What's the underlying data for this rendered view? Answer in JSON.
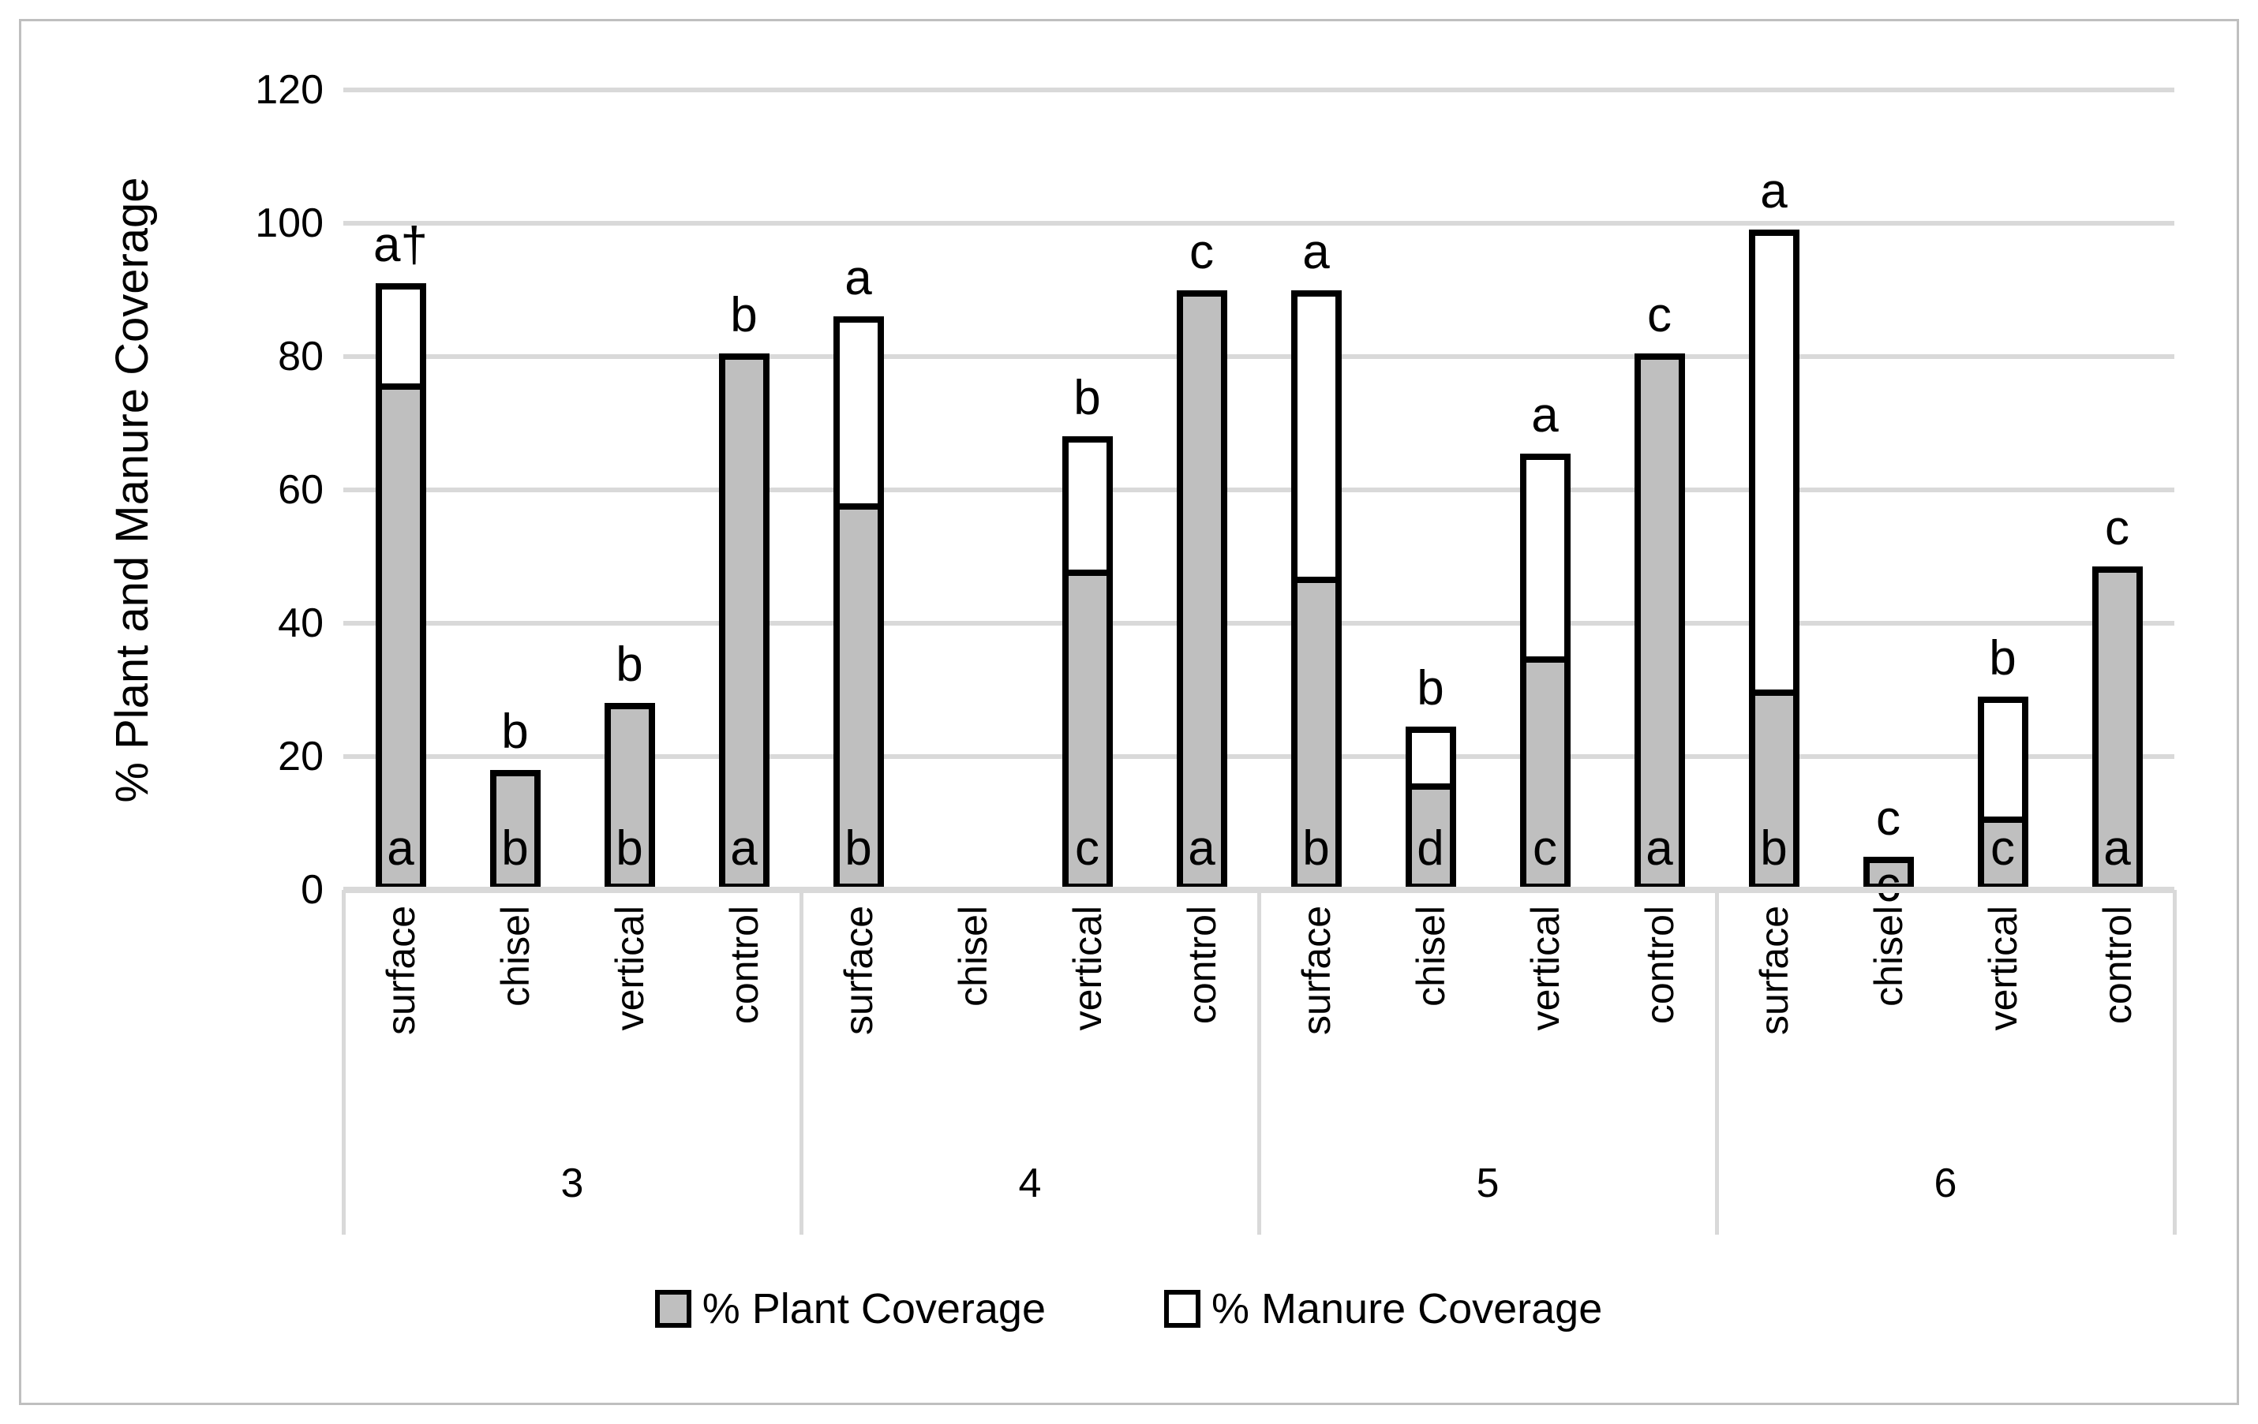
{
  "chart_data": {
    "type": "bar",
    "stacked": true,
    "title": "",
    "ylabel": "% Plant and Manure Coverage",
    "ylim": [
      0,
      120
    ],
    "yticks": [
      0,
      20,
      40,
      60,
      80,
      100,
      120
    ],
    "grid": "horizontal-major",
    "legend_position": "bottom",
    "legend": [
      {
        "name": "% Plant Coverage",
        "fill": "#bfbfbf"
      },
      {
        "name": "% Manure Coverage",
        "fill": "#ffffff"
      }
    ],
    "groups": [
      "3",
      "4",
      "5",
      "6"
    ],
    "categories": [
      "surface",
      "chisel",
      "vertical",
      "control"
    ],
    "series_names": [
      "% Plant Coverage",
      "% Manure Coverage"
    ],
    "bars": [
      {
        "group": "3",
        "treatment": "surface",
        "plant": 76,
        "manure": 15,
        "letter_inside": "a",
        "letter_above": "a†",
        "inside_low": false
      },
      {
        "group": "3",
        "treatment": "chisel",
        "plant": 18,
        "manure": 0,
        "letter_inside": "b",
        "letter_above": "b",
        "inside_low": false
      },
      {
        "group": "3",
        "treatment": "vertical",
        "plant": 28,
        "manure": 0,
        "letter_inside": "b",
        "letter_above": "b",
        "inside_low": false
      },
      {
        "group": "3",
        "treatment": "control",
        "plant": 80.5,
        "manure": 0,
        "letter_inside": "a",
        "letter_above": "b",
        "inside_low": false
      },
      {
        "group": "4",
        "treatment": "surface",
        "plant": 58,
        "manure": 28,
        "letter_inside": "b",
        "letter_above": "a",
        "inside_low": false
      },
      {
        "group": "4",
        "treatment": "chisel",
        "plant": null,
        "manure": null,
        "letter_inside": null,
        "letter_above": null,
        "inside_low": false
      },
      {
        "group": "4",
        "treatment": "vertical",
        "plant": 48,
        "manure": 20,
        "letter_inside": "c",
        "letter_above": "b",
        "inside_low": false
      },
      {
        "group": "4",
        "treatment": "control",
        "plant": 90,
        "manure": 0,
        "letter_inside": "a",
        "letter_above": "c",
        "inside_low": false
      },
      {
        "group": "5",
        "treatment": "surface",
        "plant": 47,
        "manure": 43,
        "letter_inside": "b",
        "letter_above": "a",
        "inside_low": false
      },
      {
        "group": "5",
        "treatment": "chisel",
        "plant": 16,
        "manure": 8.5,
        "letter_inside": "d",
        "letter_above": "b",
        "inside_low": false
      },
      {
        "group": "5",
        "treatment": "vertical",
        "plant": 35,
        "manure": 30.5,
        "letter_inside": "c",
        "letter_above": "a",
        "inside_low": false
      },
      {
        "group": "5",
        "treatment": "control",
        "plant": 80.5,
        "manure": 0,
        "letter_inside": "a",
        "letter_above": "c",
        "inside_low": false
      },
      {
        "group": "6",
        "treatment": "surface",
        "plant": 30,
        "manure": 69,
        "letter_inside": "b",
        "letter_above": "a",
        "inside_low": false
      },
      {
        "group": "6",
        "treatment": "chisel",
        "plant": 5,
        "manure": 0,
        "letter_inside": "c",
        "letter_above": "c",
        "inside_low": true
      },
      {
        "group": "6",
        "treatment": "vertical",
        "plant": 11,
        "manure": 18,
        "letter_inside": "c",
        "letter_above": "b",
        "inside_low": false
      },
      {
        "group": "6",
        "treatment": "control",
        "plant": 48.5,
        "manure": 0,
        "letter_inside": "a",
        "letter_above": "c",
        "inside_low": false
      }
    ],
    "colors": {
      "plant_fill": "#bfbfbf",
      "manure_fill": "#ffffff",
      "bar_border": "#000000",
      "gridline": "#d9d9d9",
      "axis_line": "#d9d9d9",
      "text": "#000000",
      "outer_border": "#bfbfbf"
    },
    "annotations_note": "a† letters shown above bars and inside bar bases"
  }
}
